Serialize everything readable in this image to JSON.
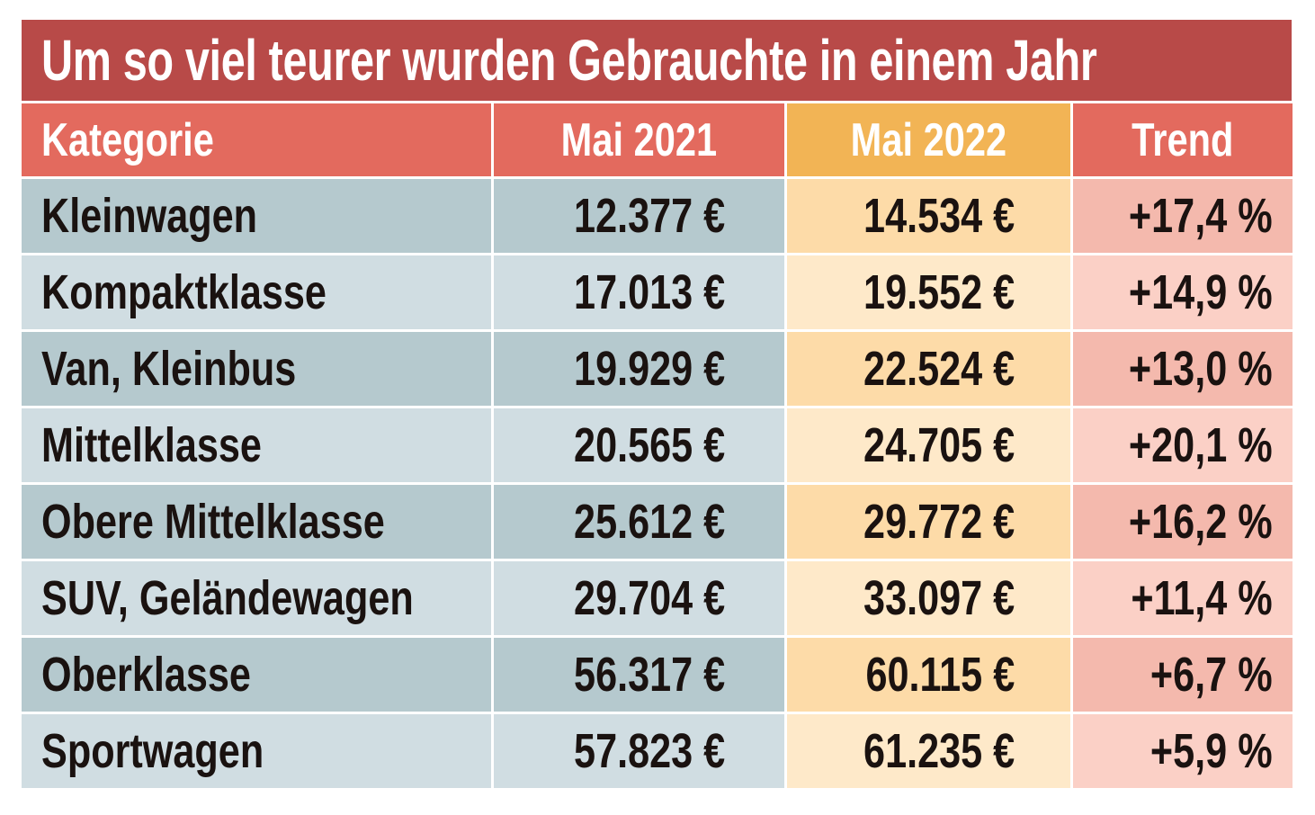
{
  "chart_data": {
    "type": "table",
    "title": "Um so viel teurer wurden Gebrauchte in einem Jahr",
    "columns": [
      "Kategorie",
      "Mai 2021",
      "Mai 2022",
      "Trend"
    ],
    "rows": [
      [
        "Kleinwagen",
        "12.377 €",
        "14.534 €",
        "+17,4 %"
      ],
      [
        "Kompaktklasse",
        "17.013 €",
        "19.552 €",
        "+14,9 %"
      ],
      [
        "Van, Kleinbus",
        "19.929 €",
        "22.524 €",
        "+13,0 %"
      ],
      [
        "Mittelklasse",
        "20.565 €",
        "24.705 €",
        "+20,1 %"
      ],
      [
        "Obere Mittelklasse",
        "25.612 €",
        "29.772 €",
        "+16,2 %"
      ],
      [
        "SUV, Geländewagen",
        "29.704 €",
        "33.097 €",
        "+11,4 %"
      ],
      [
        "Oberklasse",
        "56.317 €",
        "60.115 €",
        "+6,7 %"
      ],
      [
        "Sportwagen",
        "57.823 €",
        "61.235 €",
        "+5,9 %"
      ]
    ]
  },
  "colors": {
    "title_bg": "#b84a48",
    "header_red": "#e36a5e",
    "header_orange": "#f2b455",
    "col_category": [
      "#b5c9ce",
      "#d0dde2"
    ],
    "col_2021": [
      "#b5c9ce",
      "#d0dde2"
    ],
    "col_2022": [
      "#fddba8",
      "#fee9c9"
    ],
    "col_trend": [
      "#f4b9ad",
      "#fbd0c6"
    ]
  }
}
